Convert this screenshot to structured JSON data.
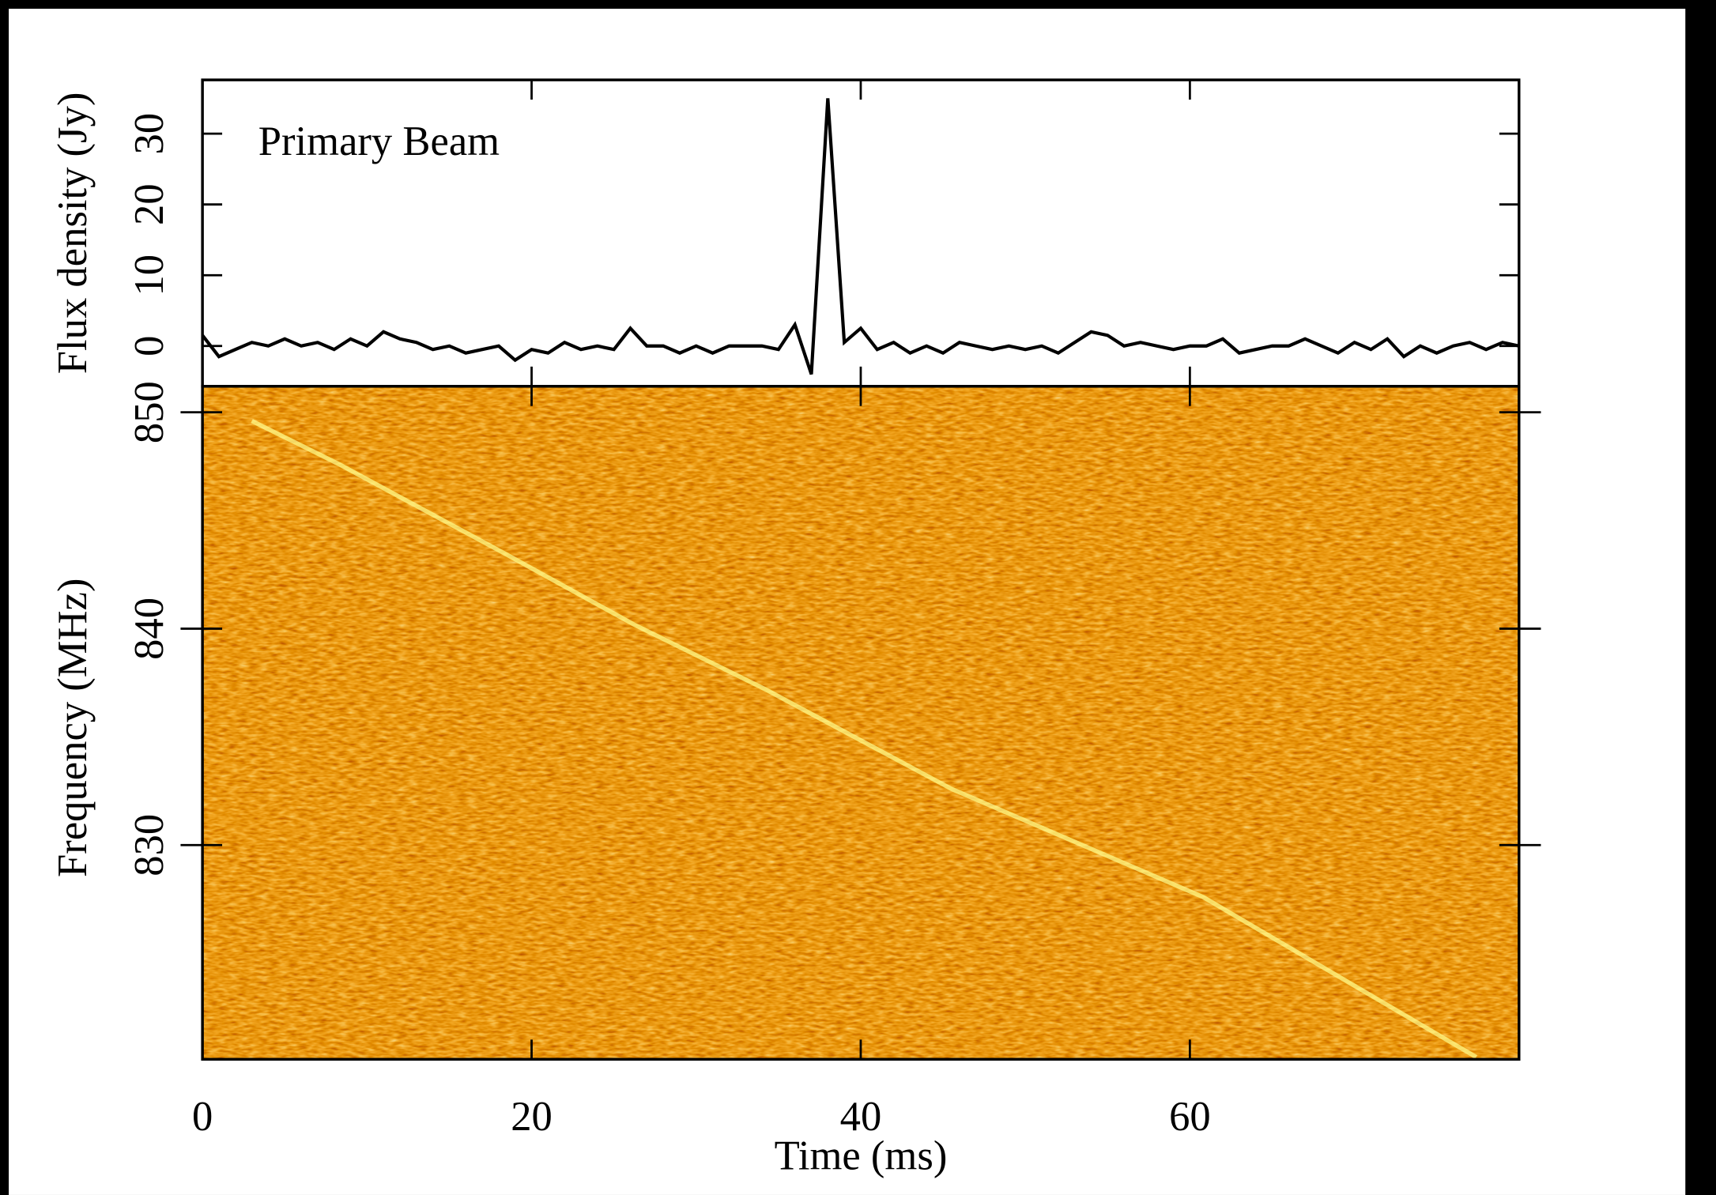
{
  "chart_data": [
    {
      "type": "line",
      "annotation": "Primary Beam",
      "y_label": "Flux density (Jy)",
      "x": [
        0,
        1,
        2,
        3,
        4,
        5,
        6,
        7,
        8,
        9,
        10,
        11,
        12,
        13,
        14,
        15,
        16,
        17,
        18,
        19,
        20,
        21,
        22,
        23,
        24,
        25,
        26,
        27,
        28,
        29,
        30,
        31,
        32,
        33,
        34,
        35,
        36,
        37,
        38,
        39,
        40,
        41,
        42,
        43,
        44,
        45,
        46,
        47,
        48,
        49,
        50,
        51,
        52,
        53,
        54,
        55,
        56,
        57,
        58,
        59,
        60,
        61,
        62,
        63,
        64,
        65,
        66,
        67,
        68,
        69,
        70,
        71,
        72,
        73,
        74,
        75,
        76,
        77,
        78,
        79,
        80
      ],
      "series": [
        {
          "color": "#000000",
          "values": [
            1.5,
            -1.5,
            -0.5,
            0.5,
            0,
            1,
            0,
            0.5,
            -0.5,
            1,
            0,
            2,
            1,
            0.5,
            -0.5,
            0,
            -1,
            -0.5,
            0,
            -2,
            -0.5,
            -1,
            0.5,
            -0.5,
            0,
            -0.5,
            2.5,
            0,
            0,
            -1,
            0,
            -1,
            0,
            0,
            0,
            -0.5,
            3,
            -4,
            35,
            0.5,
            2.5,
            -0.5,
            0.5,
            -1,
            0,
            -1,
            0.5,
            0,
            -0.5,
            0,
            -0.5,
            0,
            -1,
            0.5,
            2,
            1.5,
            0,
            0.5,
            0,
            -0.5,
            0,
            0,
            1,
            -1,
            -0.5,
            0,
            0,
            1,
            0,
            -1,
            0.5,
            -0.5,
            1,
            -1.5,
            0,
            -1,
            0,
            0.5,
            -0.5,
            0.5,
            0
          ]
        }
      ],
      "xlim": [
        0,
        80
      ],
      "ylim": [
        -5.7,
        37.6
      ],
      "xticks": [
        0,
        20,
        40,
        60
      ],
      "yticks": [
        0,
        10,
        20,
        30
      ]
    },
    {
      "type": "waterfall",
      "x_label": "Time (ms)",
      "y_label": "Frequency (MHz)",
      "x": [
        3.0,
        8.3,
        18.3,
        26.2,
        34.2,
        45.5,
        60.8,
        77.4
      ],
      "series": [
        {
          "color": "#ffff90",
          "values": [
            849.6,
            847.6,
            843.5,
            840.2,
            837.2,
            832.6,
            827.6,
            820.2
          ]
        }
      ],
      "background": "#c85a00",
      "xlim": [
        0,
        80
      ],
      "ylim": [
        820.1,
        851.2
      ],
      "xticks": [
        0,
        20,
        40,
        60
      ],
      "yticks": [
        830,
        840,
        850
      ]
    }
  ]
}
